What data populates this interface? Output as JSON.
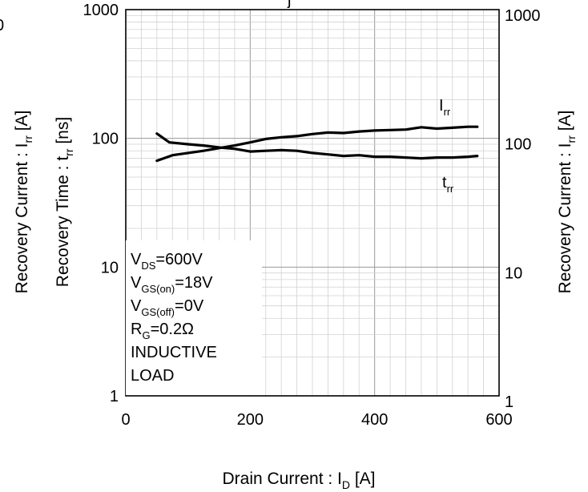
{
  "chart_data": {
    "type": "line",
    "title": "",
    "xlabel": {
      "main": "Drain Current : I",
      "sub": "D",
      "unit": "  [A]"
    },
    "ylabel_left": {
      "main": "Recovery Time : t",
      "sub": "rr",
      "unit": "  [ns]"
    },
    "ylabel_left_outer": {
      "main": "Recovery Current : I",
      "sub": "rr",
      "unit": "  [A]"
    },
    "ylabel_right": {
      "main": "Recovery Current : I",
      "sub": "rr",
      "unit": "  [A]"
    },
    "xlim": [
      0,
      600
    ],
    "ylim": [
      1,
      1000
    ],
    "yscale": "log",
    "grid": true,
    "x_ticks": [
      "0",
      "200",
      "400",
      "600"
    ],
    "y_ticks_left": [
      "1",
      "10",
      "100",
      "1000"
    ],
    "y_ticks_right": [
      "1",
      "10",
      "100",
      "1000"
    ],
    "left_edge_fragments": [
      "0"
    ],
    "top_fragment": "j",
    "series": [
      {
        "name": "rr",
        "label_main": "I",
        "label_sub": "rr",
        "x": [
          50,
          75,
          100,
          125,
          150,
          175,
          200,
          225,
          250,
          275,
          300,
          325,
          350,
          375,
          400,
          425,
          450,
          475,
          500,
          525,
          550,
          565
        ],
        "y": [
          67,
          74,
          77,
          80,
          84,
          88,
          93,
          99,
          102,
          104,
          108,
          111,
          110,
          113,
          115,
          116,
          117,
          122,
          119,
          121,
          123,
          123
        ]
      },
      {
        "name": "rr",
        "label_main": "t",
        "label_sub": "rr",
        "x": [
          50,
          70,
          100,
          125,
          150,
          175,
          200,
          225,
          250,
          275,
          300,
          325,
          350,
          375,
          400,
          425,
          450,
          475,
          500,
          525,
          550,
          565
        ],
        "y": [
          109,
          93,
          90,
          88,
          85,
          83,
          79,
          80,
          81,
          80,
          77,
          75,
          73,
          74,
          72,
          72,
          71,
          70,
          71,
          71,
          72,
          73
        ]
      }
    ],
    "conditions": [
      {
        "main": "V",
        "sub": "DS",
        "rest": "=600V"
      },
      {
        "main": "V",
        "sub": "GS(on)",
        "rest": "=18V"
      },
      {
        "main": "V",
        "sub": "GS(off)",
        "rest": "=0V"
      },
      {
        "main": "R",
        "sub": "G",
        "rest": "=0.2Ω"
      },
      {
        "main": "INDUCTIVE",
        "sub": "",
        "rest": ""
      },
      {
        "main": "LOAD",
        "sub": "",
        "rest": ""
      }
    ]
  }
}
